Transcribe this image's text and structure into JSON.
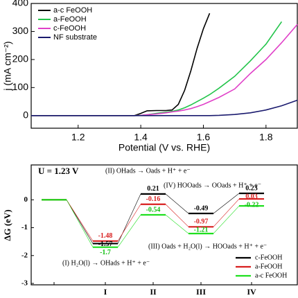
{
  "chart_data": [
    {
      "type": "line",
      "xlabel": "Potential (V vs. RHE)",
      "ylabel": "j (mA cm⁻²)",
      "x": [
        1.05,
        1.1,
        1.2,
        1.3,
        1.38,
        1.4,
        1.42,
        1.45,
        1.48,
        1.5,
        1.52,
        1.54,
        1.56,
        1.58,
        1.6,
        1.62,
        1.65,
        1.7,
        1.75,
        1.8,
        1.85,
        1.9
      ],
      "series": [
        {
          "name": "a-c FeOOH",
          "color": "#000000",
          "values": [
            0,
            0,
            0,
            0,
            0,
            8,
            17,
            18,
            18,
            20,
            40,
            90,
            160,
            240,
            310,
            365,
            null,
            null,
            null,
            null,
            null,
            null
          ]
        },
        {
          "name": "a-FeOOH",
          "color": "#22c44a",
          "values": [
            0,
            0,
            0,
            0,
            0,
            1,
            3,
            8,
            12,
            15,
            20,
            28,
            38,
            50,
            62,
            75,
            98,
            140,
            195,
            255,
            335,
            null
          ]
        },
        {
          "name": "c-FeOOH",
          "color": "#e040c8",
          "values": [
            0,
            0,
            0,
            0,
            0,
            1,
            3,
            6,
            10,
            13,
            16,
            20,
            25,
            32,
            40,
            50,
            65,
            95,
            150,
            200,
            260,
            325
          ]
        },
        {
          "name": "NF substrate",
          "color": "#1a1a6e",
          "values": [
            0,
            0,
            0,
            0,
            0,
            0,
            0,
            0,
            0,
            0,
            0,
            0,
            0,
            0,
            0,
            0,
            1,
            4,
            10,
            20,
            35,
            55
          ]
        }
      ],
      "xlim": [
        1.05,
        1.9
      ],
      "xticks": [
        1.2,
        1.4,
        1.6,
        1.8
      ],
      "ylim": [
        -45,
        400
      ],
      "yticks": [
        0,
        100,
        200,
        300,
        400
      ],
      "legend": "upper left"
    },
    {
      "type": "step",
      "ylabel": "ΔG (eV)",
      "categories": [
        null,
        "I",
        "II",
        "III",
        "IV"
      ],
      "series": [
        {
          "name": "c-FeOOH",
          "color": "#000000",
          "values": [
            0,
            -1.57,
            0.21,
            -0.49,
            0.23
          ]
        },
        {
          "name": "a-FeOOH",
          "color": "#d81e1e",
          "values": [
            0,
            -1.48,
            -0.16,
            -0.97,
            0.03
          ]
        },
        {
          "name": "a-c FeOOH",
          "color": "#1ee01e",
          "values": [
            0,
            -1.7,
            -0.54,
            -1.21,
            -0.22
          ]
        }
      ],
      "ylim": [
        -3.05,
        1.25
      ],
      "yticks": [
        -3,
        -2,
        -1,
        0
      ],
      "annotations": [
        "U = 1.23 V",
        "(I) H₂O(l) → OHads + H⁺ + e⁻",
        "(II) OHads → Oads + H⁺ + e⁻",
        "(III) Oads + H₂O(l) → HOOads + H⁺ + e⁻",
        "(IV) HOOads → OOads + H⁺ + e⁻"
      ],
      "legend": "lower right"
    }
  ]
}
